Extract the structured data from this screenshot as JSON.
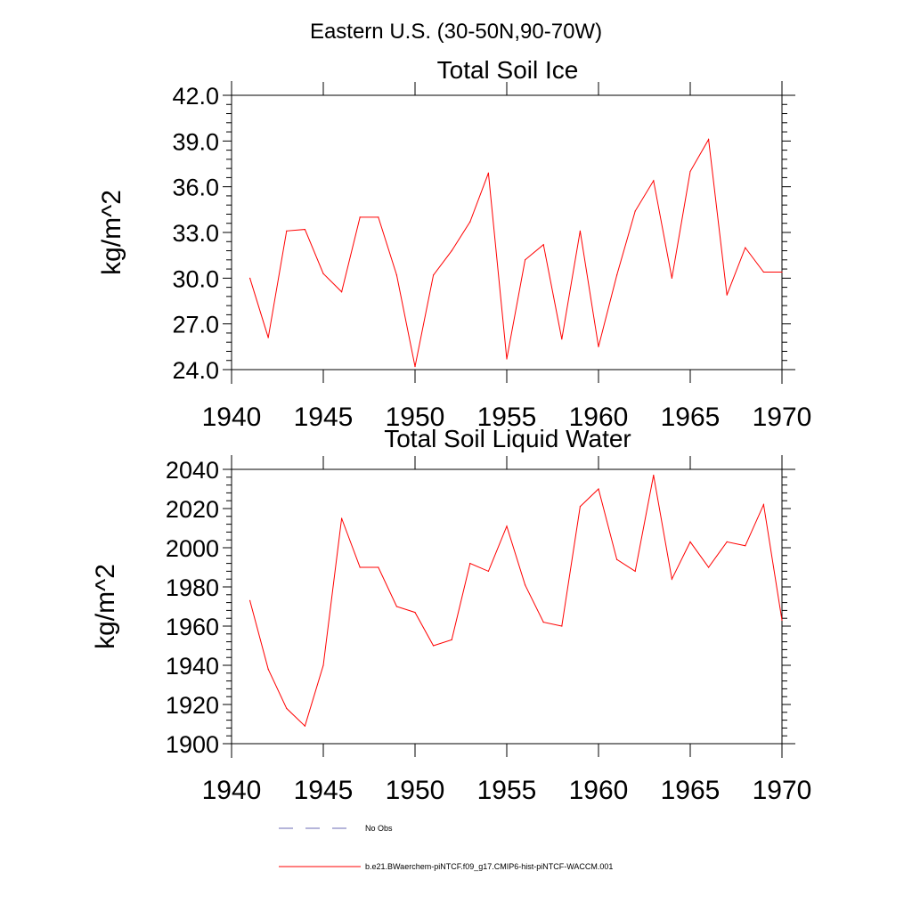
{
  "suptitle": "Eastern U.S. (30-50N,90-70W)",
  "chart_data": [
    {
      "type": "line",
      "title": "Total Soil Ice",
      "xlabel": "",
      "ylabel": "kg/m^2",
      "xlim": [
        1940,
        1970
      ],
      "ylim": [
        24.0,
        42.0
      ],
      "xticks": [
        "1940",
        "1945",
        "1950",
        "1955",
        "1960",
        "1965",
        "1970"
      ],
      "yticks": [
        "24.0",
        "27.0",
        "30.0",
        "33.0",
        "36.0",
        "39.0",
        "42.0"
      ],
      "x": [
        1941,
        1942,
        1943,
        1944,
        1945,
        1946,
        1947,
        1948,
        1949,
        1950,
        1951,
        1952,
        1953,
        1954,
        1955,
        1956,
        1957,
        1958,
        1959,
        1960,
        1961,
        1962,
        1963,
        1964,
        1965,
        1966,
        1967,
        1968,
        1969,
        1970
      ],
      "series": [
        {
          "name": "b.e21.BWaerchem-piNTCF.f09_g17.CMIP6-hist-piNTCF-WACCM.001",
          "color": "#ff0000",
          "values": [
            30.0,
            26.1,
            33.1,
            33.2,
            30.3,
            29.1,
            34.0,
            34.0,
            30.2,
            24.2,
            30.2,
            31.8,
            33.7,
            36.9,
            24.7,
            31.2,
            32.2,
            26.0,
            33.1,
            25.5,
            30.2,
            34.4,
            36.4,
            30.0,
            37.0,
            39.1,
            28.9,
            32.0,
            30.4,
            30.4
          ]
        }
      ],
      "grid": false
    },
    {
      "type": "line",
      "title": "Total Soil Liquid Water",
      "xlabel": "",
      "ylabel": "kg/m^2",
      "xlim": [
        1940,
        1970
      ],
      "ylim": [
        1900,
        2040
      ],
      "xticks": [
        "1940",
        "1945",
        "1950",
        "1955",
        "1960",
        "1965",
        "1970"
      ],
      "yticks": [
        "1900",
        "1920",
        "1940",
        "1960",
        "1980",
        "2000",
        "2020",
        "2040"
      ],
      "x": [
        1941,
        1942,
        1943,
        1944,
        1945,
        1946,
        1947,
        1948,
        1949,
        1950,
        1951,
        1952,
        1953,
        1954,
        1955,
        1956,
        1957,
        1958,
        1959,
        1960,
        1961,
        1962,
        1963,
        1964,
        1965,
        1966,
        1967,
        1968,
        1969,
        1970
      ],
      "series": [
        {
          "name": "b.e21.BWaerchem-piNTCF.f09_g17.CMIP6-hist-piNTCF-WACCM.001",
          "color": "#ff0000",
          "values": [
            1973,
            1938,
            1918,
            1909,
            1940,
            2015,
            1990,
            1990,
            1970,
            1967,
            1950,
            1953,
            1992,
            1988,
            2011,
            1981,
            1962,
            1960,
            2021,
            2030,
            1994,
            1988,
            2037,
            1984,
            2003,
            1990,
            2003,
            2001,
            2022,
            1963
          ]
        }
      ],
      "grid": false
    }
  ],
  "legend": {
    "placement": "bottom-left",
    "items": [
      {
        "label": "No Obs",
        "style": "dashed",
        "color": "#6b6bb5"
      },
      {
        "label": "b.e21.BWaerchem-piNTCF.f09_g17.CMIP6-hist-piNTCF-WACCM.001",
        "style": "solid",
        "color": "#ff0000"
      }
    ]
  }
}
